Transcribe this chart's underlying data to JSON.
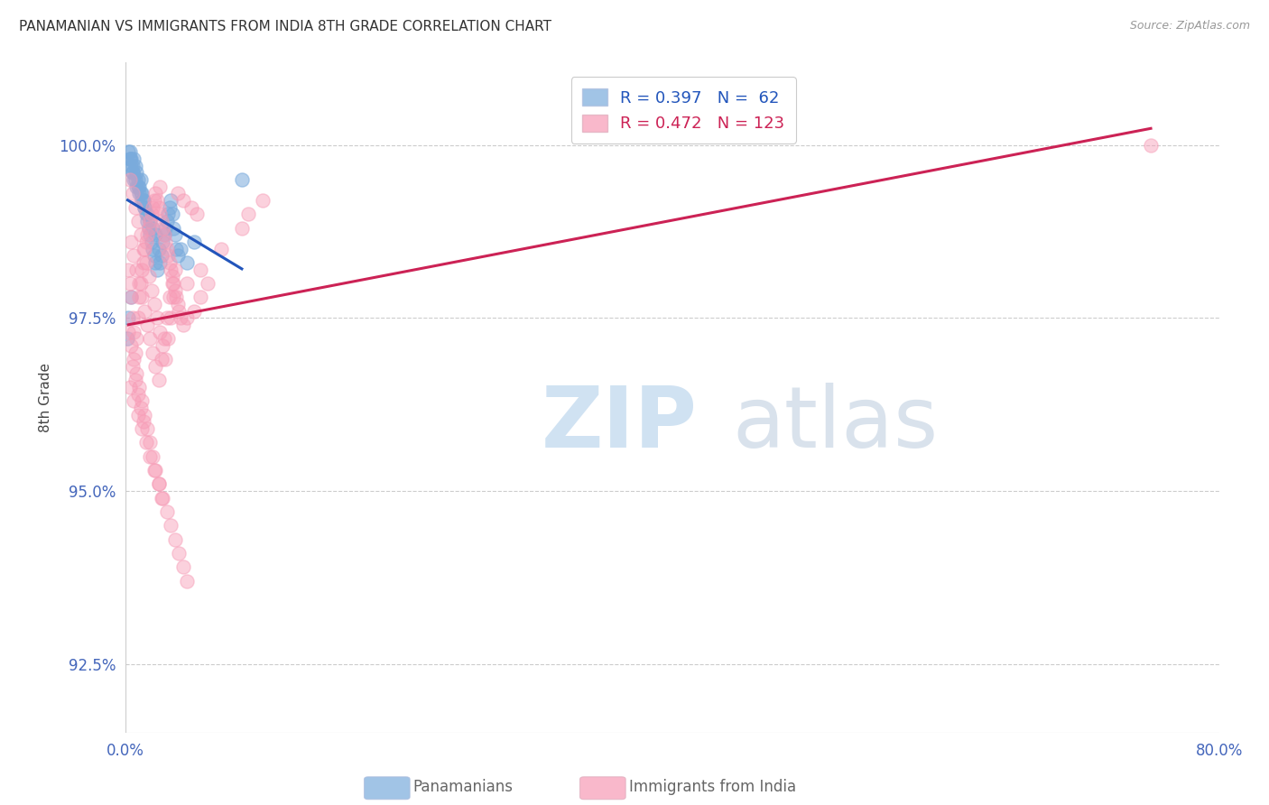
{
  "title": "PANAMANIAN VS IMMIGRANTS FROM INDIA 8TH GRADE CORRELATION CHART",
  "source": "Source: ZipAtlas.com",
  "ylabel": "8th Grade",
  "xlim": [
    0.0,
    80.0
  ],
  "ylim": [
    91.5,
    101.2
  ],
  "ytick_positions": [
    92.5,
    95.0,
    97.5,
    100.0
  ],
  "xtick_positions": [
    0,
    10,
    20,
    30,
    40,
    50,
    60,
    70,
    80
  ],
  "xtick_labels": [
    "0.0%",
    "",
    "",
    "",
    "",
    "",
    "",
    "",
    "80.0%"
  ],
  "grid_color": "#cccccc",
  "background_color": "#ffffff",
  "blue_color": "#7aabdc",
  "pink_color": "#f79ab5",
  "blue_line_color": "#2255bb",
  "pink_line_color": "#cc2255",
  "blue_R": 0.397,
  "blue_N": 62,
  "pink_R": 0.472,
  "pink_N": 123,
  "legend_label_blue": "Panamanians",
  "legend_label_pink": "Immigrants from India",
  "title_color": "#333333",
  "axis_label_color": "#444444",
  "tick_color": "#4466bb",
  "blue_scatter_x": [
    0.3,
    0.3,
    0.4,
    0.5,
    0.6,
    0.7,
    0.8,
    0.9,
    1.0,
    1.1,
    1.2,
    1.3,
    1.4,
    1.5,
    1.6,
    1.7,
    1.8,
    1.9,
    2.0,
    2.1,
    2.2,
    2.3,
    2.4,
    2.5,
    2.6,
    2.7,
    2.8,
    2.9,
    3.0,
    3.1,
    3.2,
    3.3,
    3.4,
    3.5,
    3.6,
    3.7,
    3.8,
    4.0,
    0.5,
    0.6,
    0.8,
    1.0,
    1.2,
    1.4,
    1.6,
    1.8,
    2.0,
    2.2,
    0.2,
    0.3,
    0.4,
    0.5,
    0.7,
    0.9,
    1.1,
    1.3,
    4.5,
    5.0,
    0.4,
    0.2,
    0.15,
    8.5
  ],
  "blue_scatter_y": [
    99.8,
    99.9,
    99.8,
    99.7,
    99.8,
    99.7,
    99.6,
    99.5,
    99.4,
    99.5,
    99.3,
    99.2,
    99.1,
    99.0,
    98.9,
    98.8,
    98.7,
    98.6,
    98.5,
    98.4,
    98.3,
    98.2,
    98.5,
    98.3,
    98.4,
    98.6,
    98.7,
    98.8,
    98.9,
    99.0,
    99.1,
    99.2,
    99.0,
    98.8,
    98.7,
    98.5,
    98.4,
    98.5,
    99.6,
    99.5,
    99.4,
    99.3,
    99.2,
    99.1,
    99.0,
    98.9,
    98.8,
    98.7,
    99.9,
    99.8,
    99.7,
    99.6,
    99.5,
    99.4,
    99.3,
    99.2,
    98.3,
    98.6,
    97.8,
    97.5,
    97.2,
    99.5
  ],
  "pink_scatter_x": [
    0.2,
    0.3,
    0.4,
    0.5,
    0.6,
    0.7,
    0.8,
    0.9,
    1.0,
    1.1,
    1.2,
    1.3,
    1.4,
    1.5,
    1.6,
    1.7,
    1.8,
    1.9,
    2.0,
    2.1,
    2.2,
    2.3,
    2.4,
    2.5,
    2.6,
    2.7,
    2.8,
    2.9,
    3.0,
    3.1,
    3.2,
    3.3,
    3.4,
    3.5,
    3.6,
    3.7,
    3.8,
    3.9,
    4.0,
    4.2,
    4.5,
    5.0,
    5.5,
    6.0,
    0.3,
    0.5,
    0.7,
    0.9,
    1.1,
    1.3,
    1.5,
    1.7,
    1.9,
    2.1,
    2.3,
    2.5,
    2.7,
    2.9,
    3.1,
    3.3,
    0.4,
    0.6,
    0.8,
    1.0,
    1.2,
    1.4,
    1.6,
    1.8,
    2.0,
    2.2,
    2.4,
    2.6,
    2.8,
    3.0,
    3.2,
    3.4,
    3.6,
    0.2,
    0.4,
    0.6,
    0.8,
    1.0,
    1.2,
    1.4,
    1.6,
    1.8,
    2.0,
    2.2,
    2.4,
    2.6,
    0.5,
    0.7,
    0.9,
    1.1,
    1.3,
    3.5,
    4.5,
    5.5,
    7.0,
    8.5,
    9.0,
    10.0,
    2.5,
    3.8,
    4.2,
    4.8,
    5.2,
    0.3,
    0.6,
    0.9,
    1.2,
    1.5,
    1.8,
    2.1,
    2.4,
    2.7,
    3.0,
    3.3,
    3.6,
    3.9,
    4.2,
    4.5,
    75.0
  ],
  "pink_scatter_y": [
    98.2,
    98.0,
    97.8,
    97.5,
    97.3,
    97.0,
    97.2,
    97.5,
    97.8,
    98.0,
    98.2,
    98.3,
    98.5,
    98.6,
    98.7,
    98.8,
    98.9,
    99.0,
    99.1,
    99.2,
    99.3,
    99.2,
    99.1,
    99.0,
    98.9,
    98.8,
    98.7,
    98.6,
    98.5,
    98.4,
    98.3,
    98.2,
    98.1,
    98.0,
    97.9,
    97.8,
    97.7,
    97.6,
    97.5,
    97.4,
    97.5,
    97.6,
    97.8,
    98.0,
    99.5,
    99.3,
    99.1,
    98.9,
    98.7,
    98.5,
    98.3,
    98.1,
    97.9,
    97.7,
    97.5,
    97.3,
    97.1,
    96.9,
    97.2,
    97.5,
    98.6,
    98.4,
    98.2,
    98.0,
    97.8,
    97.6,
    97.4,
    97.2,
    97.0,
    96.8,
    96.6,
    96.9,
    97.2,
    97.5,
    97.8,
    98.0,
    98.2,
    97.3,
    97.1,
    96.9,
    96.7,
    96.5,
    96.3,
    96.1,
    95.9,
    95.7,
    95.5,
    95.3,
    95.1,
    94.9,
    96.8,
    96.6,
    96.4,
    96.2,
    96.0,
    97.8,
    98.0,
    98.2,
    98.5,
    98.8,
    99.0,
    99.2,
    99.4,
    99.3,
    99.2,
    99.1,
    99.0,
    96.5,
    96.3,
    96.1,
    95.9,
    95.7,
    95.5,
    95.3,
    95.1,
    94.9,
    94.7,
    94.5,
    94.3,
    94.1,
    93.9,
    93.7,
    100.0
  ]
}
